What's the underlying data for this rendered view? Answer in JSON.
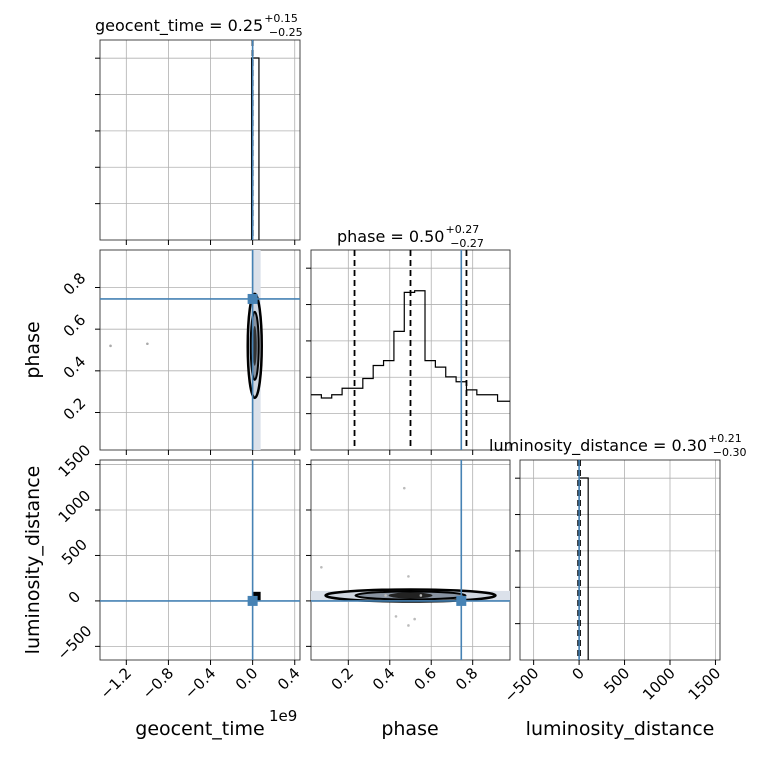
{
  "colors": {
    "truth": "#4682b4",
    "hist": "#000000",
    "grid": "#b0b0b0",
    "density_shade": "#dbe1ea"
  },
  "chart_data": {
    "type": "corner",
    "parameters": [
      {
        "name": "geocent_time",
        "label": "geocent_time",
        "title_value": "0.25",
        "title_plus": "+0.15",
        "title_minus": "−0.25",
        "offset_text": "1e9",
        "truth": 0.0
      },
      {
        "name": "phase",
        "label": "phase",
        "title_value": "0.50",
        "title_plus": "+0.27",
        "title_minus": "−0.27",
        "truth": 0.745
      },
      {
        "name": "luminosity_distance",
        "label": "luminosity_distance",
        "title_value": "0.30",
        "title_plus": "+0.21",
        "title_minus": "−0.30",
        "truth": 0.0
      }
    ],
    "axes": {
      "geocent_time": {
        "range": [
          -1.45,
          0.45
        ],
        "ticks": [
          "−1.2",
          "−0.8",
          "−0.4",
          "0.0",
          "0.4"
        ],
        "tick_values": [
          -1.2,
          -0.8,
          -0.4,
          0.0,
          0.4
        ],
        "offset": "1e9"
      },
      "phase": {
        "range": [
          0.02,
          0.98
        ],
        "ticks": [
          "0.2",
          "0.4",
          "0.6",
          "0.8"
        ],
        "tick_values": [
          0.2,
          0.4,
          0.6,
          0.8
        ]
      },
      "luminosity_distance": {
        "range": [
          -650,
          1550
        ],
        "ticks": [
          "−500",
          "0",
          "500",
          "1000",
          "1500"
        ],
        "tick_values": [
          -500,
          0,
          500,
          1000,
          1500
        ]
      }
    },
    "histograms": {
      "geocent_time": {
        "bin_edges": [
          -0.01,
          0.06
        ],
        "counts": [
          1.0
        ],
        "ymax": 1.0,
        "quantiles": [
          0.0,
          0.0,
          0.0
        ]
      },
      "phase": {
        "bin_edges": [
          0.02,
          0.07,
          0.12,
          0.17,
          0.22,
          0.27,
          0.32,
          0.37,
          0.42,
          0.47,
          0.52,
          0.57,
          0.62,
          0.67,
          0.72,
          0.77,
          0.82,
          0.87,
          0.92,
          0.98
        ],
        "counts": [
          0.34,
          0.32,
          0.34,
          0.38,
          0.38,
          0.44,
          0.52,
          0.55,
          0.73,
          0.97,
          0.98,
          0.55,
          0.51,
          0.45,
          0.42,
          0.37,
          0.34,
          0.34,
          0.3
        ],
        "ymax": 1.12,
        "quantiles": [
          0.23,
          0.5,
          0.77
        ]
      },
      "luminosity_distance": {
        "bin_edges": [
          0,
          100
        ],
        "counts": [
          1.0
        ],
        "ymax": 1.0,
        "quantiles": [
          -10,
          0,
          10
        ]
      }
    },
    "scatter_points": {
      "phase_vs_geocent_time": [
        [
          -1.35,
          0.52
        ],
        [
          -1.0,
          0.53
        ]
      ],
      "luminosity_distance_vs_phase": [
        [
          0.07,
          370
        ],
        [
          0.47,
          1240
        ],
        [
          0.49,
          270
        ],
        [
          0.43,
          -170
        ],
        [
          0.52,
          -200
        ],
        [
          0.49,
          -270
        ],
        [
          0.55,
          60
        ],
        [
          0.38,
          60
        ]
      ]
    },
    "grid": true
  }
}
